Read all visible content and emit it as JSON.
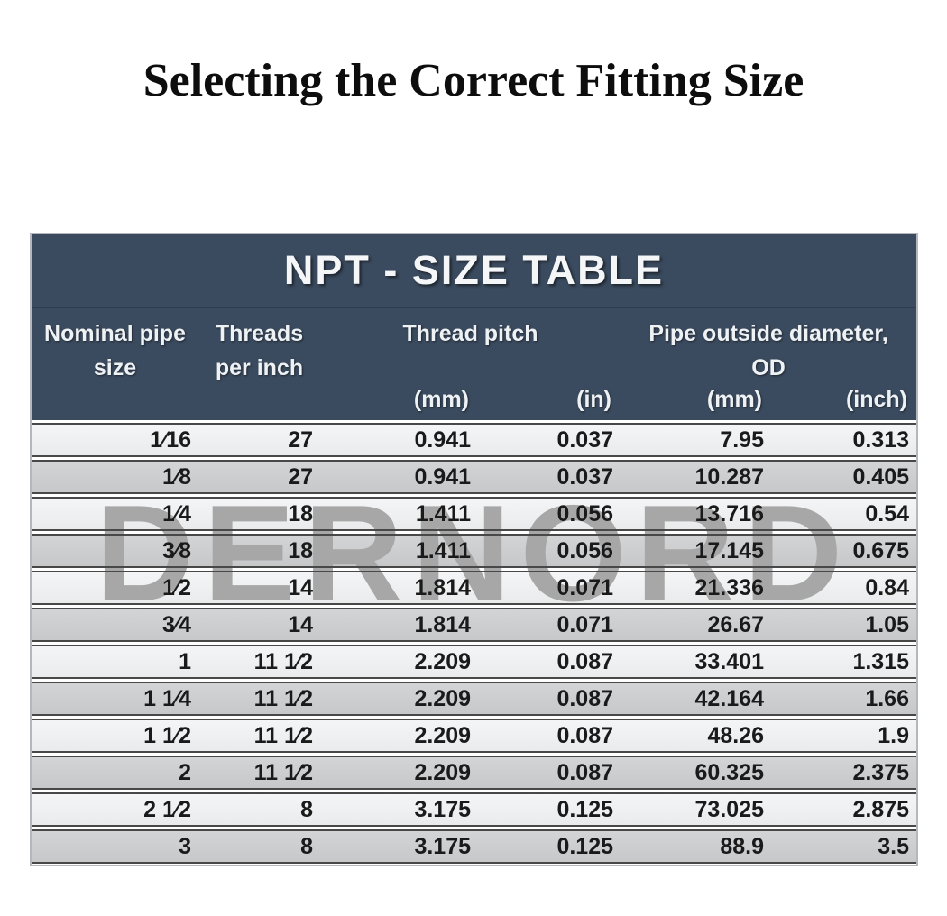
{
  "page": {
    "title": "Selecting the Correct Fitting Size",
    "watermark": "DERNORD",
    "colors": {
      "header_bg": "#3b4b5f",
      "header_text": "#eef2f5",
      "row_light": "#eff1f2",
      "row_dark": "#cbcdcf",
      "row_border": "#484848",
      "watermark_gray": "#a7a7a7"
    }
  },
  "table": {
    "title": "NPT - SIZE TABLE",
    "column_groups": [
      {
        "label": "Nominal pipe size",
        "span": 1
      },
      {
        "label": "Threads per inch",
        "span": 1
      },
      {
        "label": "Thread pitch",
        "span": 2
      },
      {
        "label": "Pipe outside diameter, OD",
        "span": 2
      }
    ],
    "units": [
      "(mm)",
      "(in)",
      "(mm)",
      "(inch)"
    ],
    "columns": [
      "Nominal pipe size",
      "Threads per inch",
      "Thread pitch (mm)",
      "Thread pitch (in)",
      "Pipe OD (mm)",
      "Pipe OD (inch)"
    ],
    "rows": [
      [
        "1⁄16",
        "27",
        "0.941",
        "0.037",
        "7.95",
        "0.313"
      ],
      [
        "1⁄8",
        "27",
        "0.941",
        "0.037",
        "10.287",
        "0.405"
      ],
      [
        "1⁄4",
        "18",
        "1.411",
        "0.056",
        "13.716",
        "0.54"
      ],
      [
        "3⁄8",
        "18",
        "1.411",
        "0.056",
        "17.145",
        "0.675"
      ],
      [
        "1⁄2",
        "14",
        "1.814",
        "0.071",
        "21.336",
        "0.84"
      ],
      [
        "3⁄4",
        "14",
        "1.814",
        "0.071",
        "26.67",
        "1.05"
      ],
      [
        "1",
        "11 1⁄2",
        "2.209",
        "0.087",
        "33.401",
        "1.315"
      ],
      [
        "1 1⁄4",
        "11 1⁄2",
        "2.209",
        "0.087",
        "42.164",
        "1.66"
      ],
      [
        "1 1⁄2",
        "11 1⁄2",
        "2.209",
        "0.087",
        "48.26",
        "1.9"
      ],
      [
        "2",
        "11 1⁄2",
        "2.209",
        "0.087",
        "60.325",
        "2.375"
      ],
      [
        "2 1⁄2",
        "8",
        "3.175",
        "0.125",
        "73.025",
        "2.875"
      ],
      [
        "3",
        "8",
        "3.175",
        "0.125",
        "88.9",
        "3.5"
      ]
    ]
  }
}
